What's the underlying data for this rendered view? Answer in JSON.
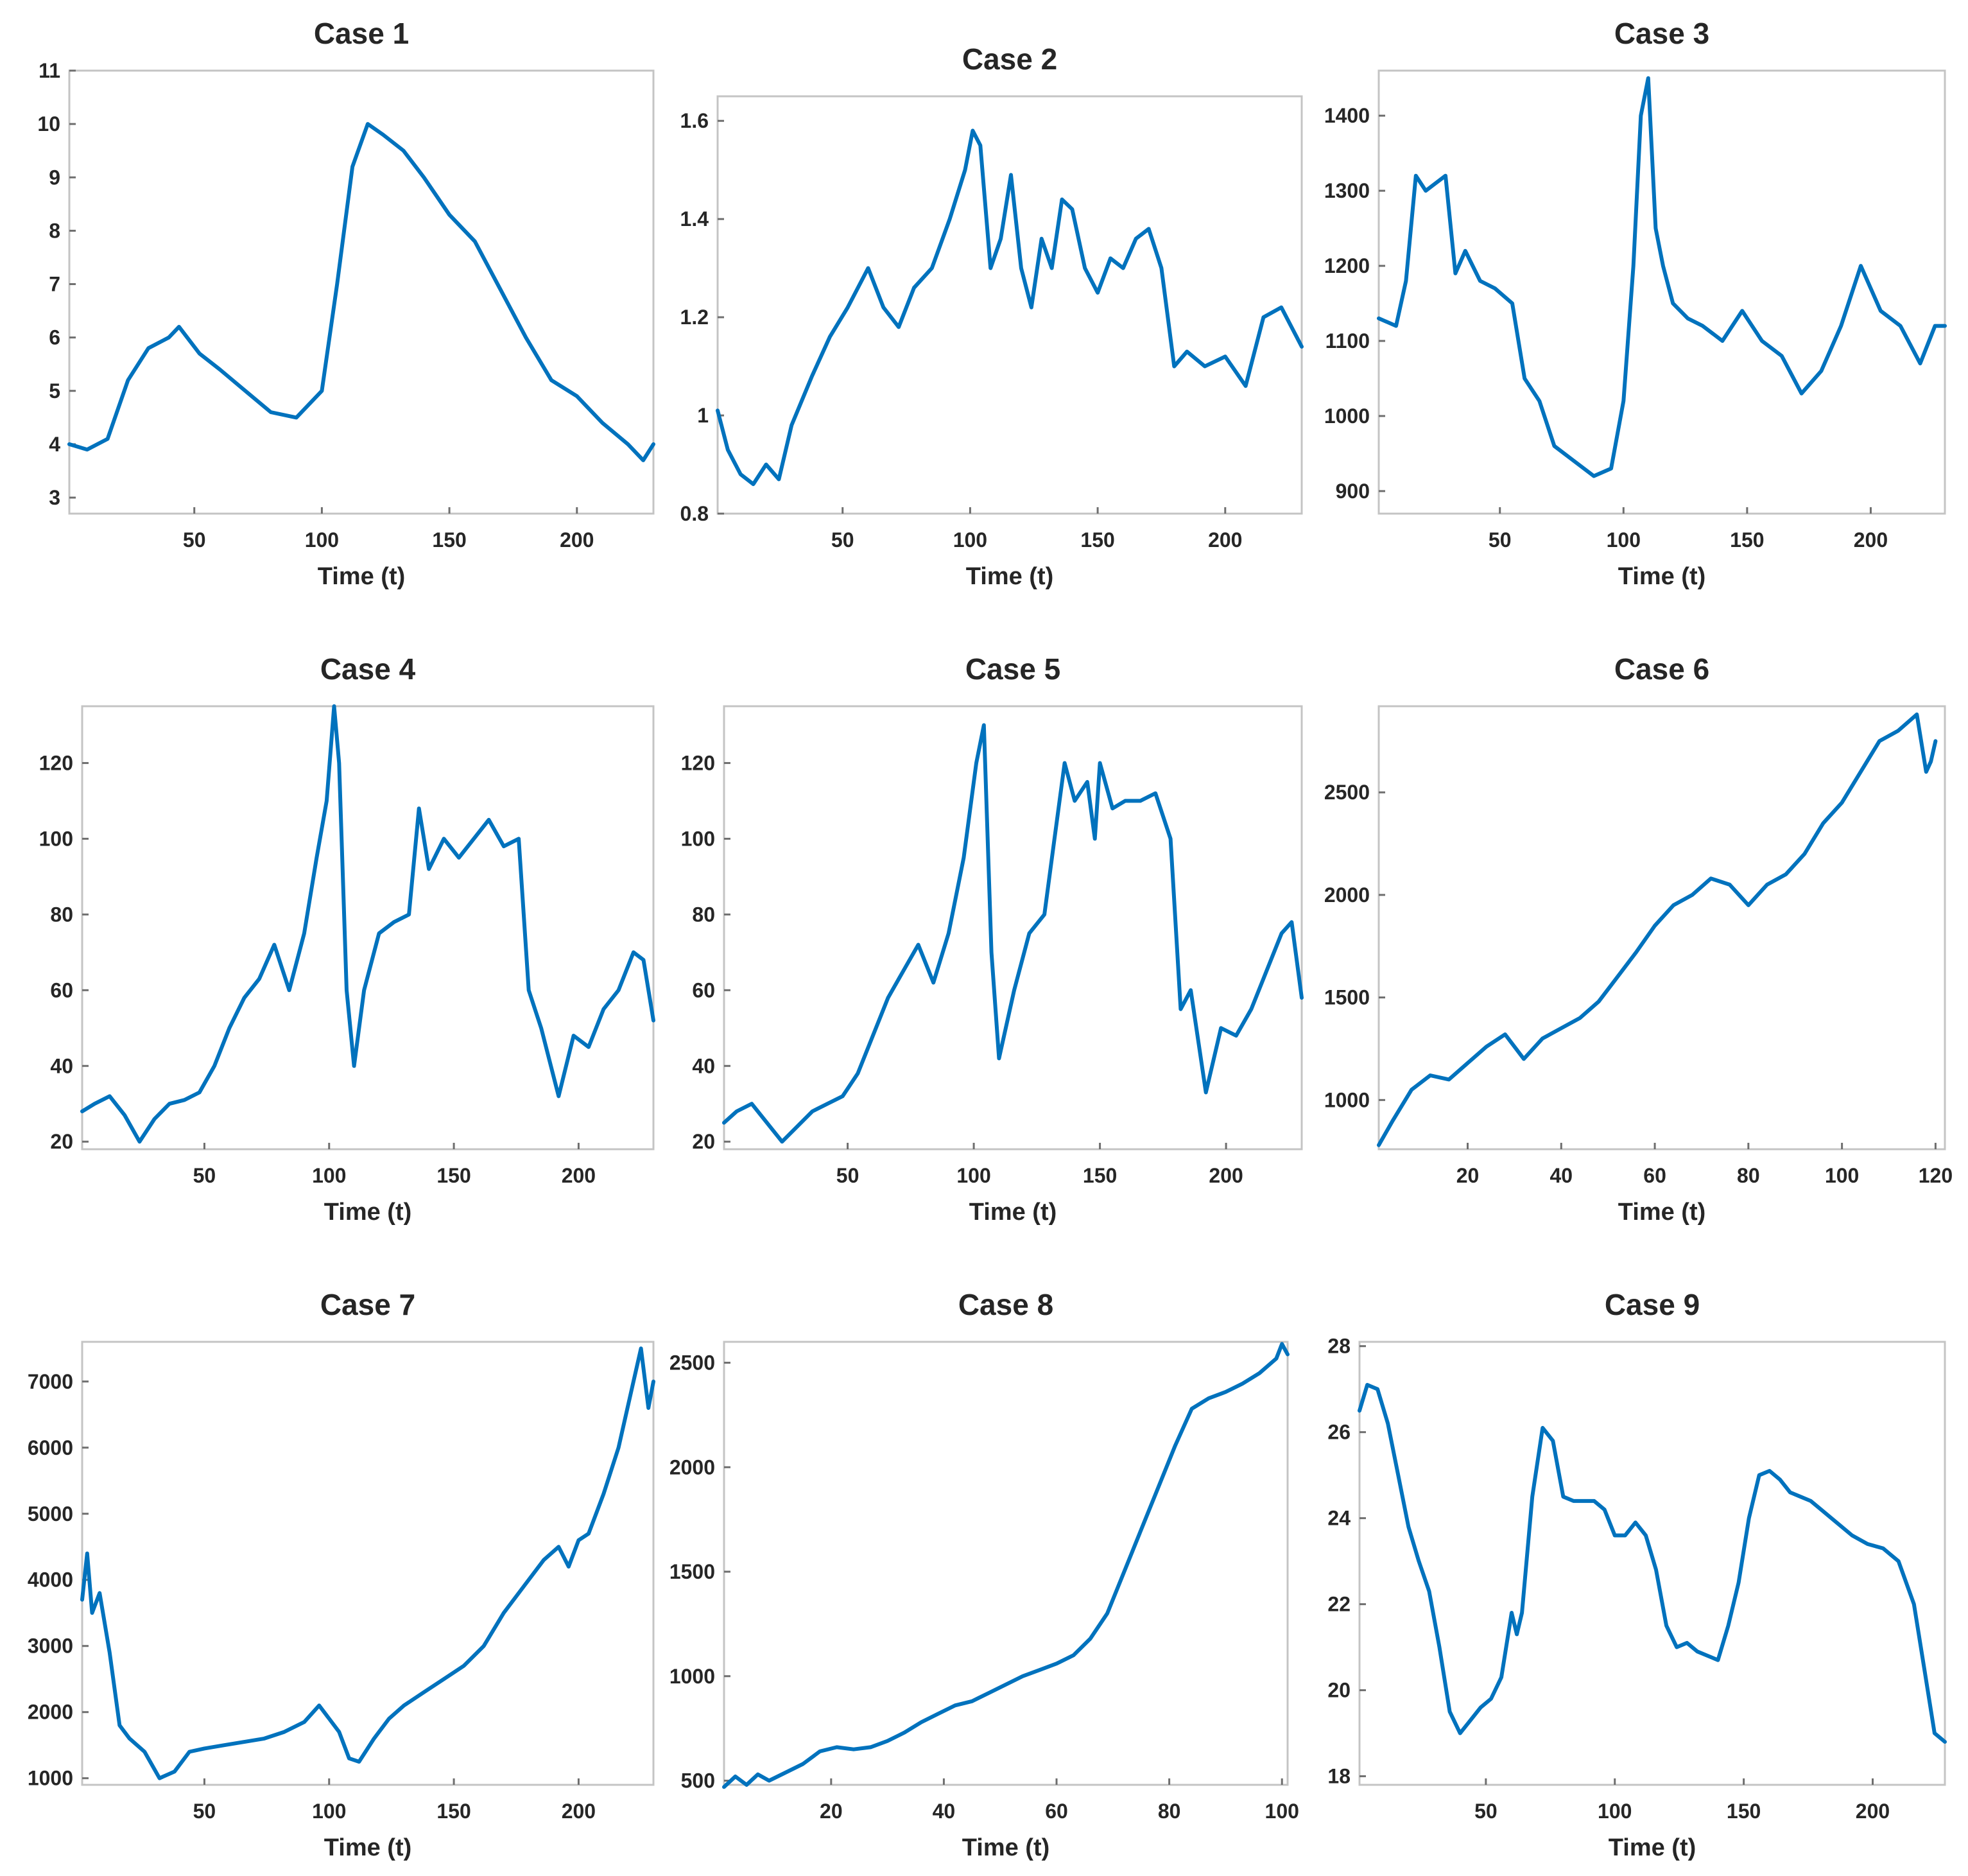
{
  "figure": {
    "line_color": "#0072BD"
  },
  "chart_data": [
    {
      "type": "line",
      "title": "Case 1",
      "xlabel": "Time (t)",
      "ylabel": "",
      "xlim": [
        1,
        230
      ],
      "ylim": [
        2.7,
        11
      ],
      "xticks": [
        50,
        100,
        150,
        200
      ],
      "yticks": [
        3,
        4,
        5,
        6,
        7,
        8,
        9,
        10,
        11
      ],
      "x": [
        1,
        8,
        16,
        24,
        32,
        40,
        44,
        52,
        60,
        70,
        80,
        90,
        100,
        106,
        112,
        118,
        124,
        132,
        140,
        150,
        160,
        170,
        180,
        190,
        200,
        210,
        220,
        226,
        230
      ],
      "y": [
        4.0,
        3.9,
        4.1,
        5.2,
        5.8,
        6.0,
        6.2,
        5.7,
        5.4,
        5.0,
        4.6,
        4.5,
        5.0,
        7.0,
        9.2,
        10.0,
        9.8,
        9.5,
        9.0,
        8.3,
        7.8,
        6.9,
        6.0,
        5.2,
        4.9,
        4.4,
        4.0,
        3.7,
        4.0
      ]
    },
    {
      "type": "line",
      "title": "Case 2",
      "xlabel": "Time (t)",
      "ylabel": "",
      "xlim": [
        1,
        230
      ],
      "ylim": [
        0.8,
        1.65
      ],
      "xticks": [
        50,
        100,
        150,
        200
      ],
      "yticks": [
        0.8,
        1,
        1.2,
        1.4,
        1.6
      ],
      "x": [
        1,
        5,
        10,
        15,
        20,
        25,
        30,
        38,
        45,
        52,
        60,
        66,
        72,
        78,
        85,
        92,
        98,
        101,
        104,
        108,
        112,
        116,
        120,
        124,
        128,
        132,
        136,
        140,
        145,
        150,
        155,
        160,
        165,
        170,
        175,
        180,
        185,
        192,
        200,
        208,
        215,
        222,
        230
      ],
      "y": [
        1.01,
        0.93,
        0.88,
        0.86,
        0.9,
        0.87,
        0.98,
        1.08,
        1.16,
        1.22,
        1.3,
        1.22,
        1.18,
        1.26,
        1.3,
        1.4,
        1.5,
        1.58,
        1.55,
        1.3,
        1.36,
        1.49,
        1.3,
        1.22,
        1.36,
        1.3,
        1.44,
        1.42,
        1.3,
        1.25,
        1.32,
        1.3,
        1.36,
        1.38,
        1.3,
        1.1,
        1.13,
        1.1,
        1.12,
        1.06,
        1.2,
        1.22,
        1.14
      ]
    },
    {
      "type": "line",
      "title": "Case 3",
      "xlabel": "Time (t)",
      "ylabel": "",
      "xlim": [
        1,
        230
      ],
      "ylim": [
        870,
        1460
      ],
      "xticks": [
        50,
        100,
        150,
        200
      ],
      "yticks": [
        900,
        1000,
        1100,
        1200,
        1300,
        1400
      ],
      "x": [
        1,
        8,
        12,
        16,
        20,
        24,
        28,
        32,
        36,
        42,
        48,
        55,
        60,
        66,
        72,
        80,
        88,
        95,
        100,
        104,
        107,
        110,
        113,
        116,
        120,
        126,
        132,
        140,
        148,
        156,
        164,
        172,
        180,
        188,
        196,
        204,
        212,
        220,
        226,
        230
      ],
      "y": [
        1130,
        1120,
        1180,
        1320,
        1300,
        1310,
        1320,
        1190,
        1220,
        1180,
        1170,
        1150,
        1050,
        1020,
        960,
        940,
        920,
        930,
        1020,
        1200,
        1400,
        1450,
        1250,
        1200,
        1150,
        1130,
        1120,
        1100,
        1140,
        1100,
        1080,
        1030,
        1060,
        1120,
        1200,
        1140,
        1120,
        1070,
        1120,
        1120
      ]
    },
    {
      "type": "line",
      "title": "Case 4",
      "xlabel": "Time (t)",
      "ylabel": "",
      "xlim": [
        1,
        230
      ],
      "ylim": [
        18,
        135
      ],
      "xticks": [
        50,
        100,
        150,
        200
      ],
      "yticks": [
        20,
        40,
        60,
        80,
        100,
        120
      ],
      "x": [
        1,
        6,
        12,
        18,
        24,
        30,
        36,
        42,
        48,
        54,
        60,
        66,
        72,
        78,
        84,
        90,
        95,
        99,
        102,
        104,
        107,
        110,
        114,
        120,
        126,
        132,
        136,
        140,
        146,
        152,
        158,
        164,
        170,
        176,
        180,
        185,
        192,
        198,
        204,
        210,
        216,
        222,
        226,
        230
      ],
      "y": [
        28,
        30,
        32,
        27,
        20,
        26,
        30,
        31,
        33,
        40,
        50,
        58,
        63,
        72,
        60,
        75,
        95,
        110,
        135,
        120,
        60,
        40,
        60,
        75,
        78,
        80,
        108,
        92,
        100,
        95,
        100,
        105,
        98,
        100,
        60,
        50,
        32,
        48,
        45,
        55,
        60,
        70,
        68,
        52
      ]
    },
    {
      "type": "line",
      "title": "Case 5",
      "xlabel": "Time (t)",
      "ylabel": "",
      "xlim": [
        1,
        230
      ],
      "ylim": [
        18,
        135
      ],
      "xticks": [
        50,
        100,
        150,
        200
      ],
      "yticks": [
        20,
        40,
        60,
        80,
        100,
        120
      ],
      "x": [
        1,
        6,
        12,
        18,
        24,
        30,
        36,
        42,
        48,
        54,
        60,
        66,
        72,
        78,
        84,
        90,
        96,
        101,
        104,
        107,
        110,
        116,
        122,
        128,
        132,
        136,
        140,
        145,
        148,
        150,
        155,
        160,
        166,
        172,
        178,
        182,
        186,
        192,
        198,
        204,
        210,
        216,
        222,
        226,
        230
      ],
      "y": [
        25,
        28,
        30,
        25,
        20,
        24,
        28,
        30,
        32,
        38,
        48,
        58,
        65,
        72,
        62,
        75,
        95,
        120,
        130,
        70,
        42,
        60,
        75,
        80,
        100,
        120,
        110,
        115,
        100,
        120,
        108,
        110,
        110,
        112,
        100,
        55,
        60,
        33,
        50,
        48,
        55,
        65,
        75,
        78,
        58
      ]
    },
    {
      "type": "line",
      "title": "Case 6",
      "xlabel": "Time (t)",
      "ylabel": "",
      "xlim": [
        1,
        122
      ],
      "ylim": [
        760,
        2920
      ],
      "xticks": [
        20,
        40,
        60,
        80,
        100,
        120
      ],
      "yticks": [
        1000,
        1500,
        2000,
        2500
      ],
      "x": [
        1,
        4,
        8,
        12,
        16,
        20,
        24,
        28,
        32,
        36,
        40,
        44,
        48,
        52,
        56,
        60,
        64,
        68,
        72,
        76,
        80,
        82,
        84,
        88,
        92,
        96,
        100,
        104,
        108,
        112,
        116,
        118,
        119,
        120
      ],
      "y": [
        780,
        900,
        1050,
        1120,
        1100,
        1180,
        1260,
        1320,
        1200,
        1300,
        1350,
        1400,
        1480,
        1600,
        1720,
        1850,
        1950,
        2000,
        2080,
        2050,
        1950,
        2000,
        2050,
        2100,
        2200,
        2350,
        2450,
        2600,
        2750,
        2800,
        2880,
        2600,
        2650,
        2750
      ]
    },
    {
      "type": "line",
      "title": "Case 7",
      "xlabel": "Time (t)",
      "ylabel": "",
      "xlim": [
        1,
        230
      ],
      "ylim": [
        900,
        7600
      ],
      "xticks": [
        50,
        100,
        150,
        200
      ],
      "yticks": [
        1000,
        2000,
        3000,
        4000,
        5000,
        6000,
        7000
      ],
      "x": [
        1,
        3,
        5,
        8,
        12,
        16,
        20,
        26,
        32,
        38,
        44,
        50,
        58,
        66,
        74,
        82,
        90,
        96,
        100,
        104,
        108,
        112,
        118,
        124,
        130,
        138,
        146,
        154,
        162,
        170,
        178,
        186,
        192,
        196,
        200,
        204,
        210,
        216,
        222,
        225,
        228,
        230
      ],
      "y": [
        3700,
        4400,
        3500,
        3800,
        2900,
        1800,
        1600,
        1400,
        1000,
        1100,
        1400,
        1450,
        1500,
        1550,
        1600,
        1700,
        1850,
        2100,
        1900,
        1700,
        1300,
        1250,
        1600,
        1900,
        2100,
        2300,
        2500,
        2700,
        3000,
        3500,
        3900,
        4300,
        4500,
        4200,
        4600,
        4700,
        5300,
        6000,
        7000,
        7500,
        6600,
        7000
      ]
    },
    {
      "type": "line",
      "title": "Case 8",
      "xlabel": "Time (t)",
      "ylabel": "",
      "xlim": [
        1,
        101
      ],
      "ylim": [
        480,
        2600
      ],
      "xticks": [
        20,
        40,
        60,
        80,
        100
      ],
      "yticks": [
        500,
        1000,
        1500,
        2000,
        2500
      ],
      "x": [
        1,
        3,
        5,
        7,
        9,
        12,
        15,
        18,
        21,
        24,
        27,
        30,
        33,
        36,
        39,
        42,
        45,
        48,
        51,
        54,
        57,
        60,
        63,
        66,
        69,
        72,
        75,
        78,
        81,
        84,
        87,
        90,
        93,
        96,
        99,
        100,
        101
      ],
      "y": [
        470,
        520,
        480,
        530,
        500,
        540,
        580,
        640,
        660,
        650,
        660,
        690,
        730,
        780,
        820,
        860,
        880,
        920,
        960,
        1000,
        1030,
        1060,
        1100,
        1180,
        1300,
        1500,
        1700,
        1900,
        2100,
        2280,
        2330,
        2360,
        2400,
        2450,
        2520,
        2590,
        2540
      ]
    },
    {
      "type": "line",
      "title": "Case 9",
      "xlabel": "Time (t)",
      "ylabel": "",
      "xlim": [
        1,
        228
      ],
      "ylim": [
        17.8,
        28.1
      ],
      "xticks": [
        50,
        100,
        150,
        200
      ],
      "yticks": [
        18,
        20,
        22,
        24,
        26,
        28
      ],
      "x": [
        1,
        4,
        8,
        12,
        16,
        20,
        24,
        28,
        32,
        36,
        40,
        44,
        48,
        52,
        56,
        60,
        62,
        64,
        68,
        72,
        76,
        80,
        84,
        88,
        92,
        96,
        100,
        104,
        108,
        112,
        116,
        120,
        124,
        128,
        132,
        136,
        140,
        144,
        148,
        152,
        156,
        160,
        164,
        168,
        172,
        176,
        180,
        186,
        192,
        198,
        204,
        210,
        216,
        220,
        224,
        228
      ],
      "y": [
        26.5,
        27.1,
        27.0,
        26.2,
        25.0,
        23.8,
        23.0,
        22.3,
        21.0,
        19.5,
        19.0,
        19.3,
        19.6,
        19.8,
        20.3,
        21.8,
        21.3,
        21.8,
        24.5,
        26.1,
        25.8,
        24.5,
        24.4,
        24.4,
        24.4,
        24.2,
        23.6,
        23.6,
        23.9,
        23.6,
        22.8,
        21.5,
        21.0,
        21.1,
        20.9,
        20.8,
        20.7,
        21.5,
        22.5,
        24.0,
        25.0,
        25.1,
        24.9,
        24.6,
        24.5,
        24.4,
        24.2,
        23.9,
        23.6,
        23.4,
        23.3,
        23.0,
        22.0,
        20.5,
        19.0,
        18.8
      ]
    }
  ]
}
